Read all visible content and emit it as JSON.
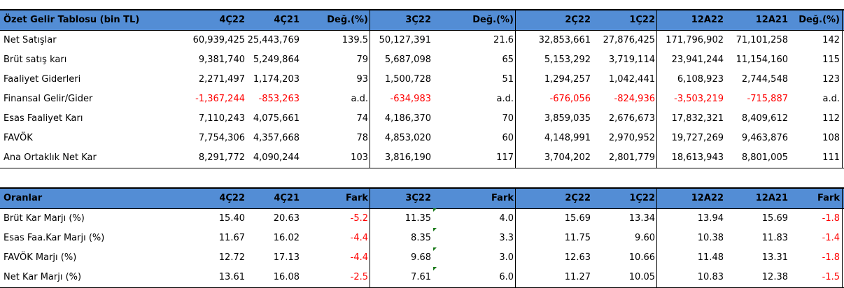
{
  "income": {
    "header": {
      "title": "Özet Gelir Tablosu (bin TL)",
      "cols": [
        "4Ç22",
        "4Ç21",
        "Değ.(%)",
        "3Ç22",
        "Değ.(%)",
        "2Ç22",
        "1Ç22",
        "12A22",
        "12A21",
        "Değ.(%)"
      ]
    },
    "rows": [
      {
        "label": "Net Satışlar",
        "values": [
          "60,939,425",
          "25,443,769",
          "139.5",
          "50,127,391",
          "21.6",
          "32,853,661",
          "27,876,425",
          "171,796,902",
          "71,101,258",
          "142"
        ],
        "negative": []
      },
      {
        "label": "Brüt satış karı",
        "values": [
          "9,381,740",
          "5,249,864",
          "79",
          "5,687,098",
          "65",
          "5,153,292",
          "3,719,114",
          "23,941,244",
          "11,154,160",
          "115"
        ],
        "negative": []
      },
      {
        "label": "Faaliyet Giderleri",
        "values": [
          "2,271,497",
          "1,174,203",
          "93",
          "1,500,728",
          "51",
          "1,294,257",
          "1,042,441",
          "6,108,923",
          "2,744,548",
          "123"
        ],
        "negative": []
      },
      {
        "label": "Finansal Gelir/Gider",
        "values": [
          "-1,367,244",
          "-853,263",
          "a.d.",
          "-634,983",
          "a.d.",
          "-676,056",
          "-824,936",
          "-3,503,219",
          "-715,887",
          "a.d."
        ],
        "negative": [
          0,
          1,
          3,
          5,
          6,
          7,
          8
        ]
      },
      {
        "label": "Esas Faaliyet Karı",
        "values": [
          "7,110,243",
          "4,075,661",
          "74",
          "4,186,370",
          "70",
          "3,859,035",
          "2,676,673",
          "17,832,321",
          "8,409,612",
          "112"
        ],
        "negative": []
      },
      {
        "label": "FAVÖK",
        "values": [
          "7,754,306",
          "4,357,668",
          "78",
          "4,853,020",
          "60",
          "4,148,991",
          "2,970,952",
          "19,727,269",
          "9,463,876",
          "108"
        ],
        "negative": []
      },
      {
        "label": "Ana Ortaklık Net Kar",
        "values": [
          "8,291,772",
          "4,090,244",
          "103",
          "3,816,190",
          "117",
          "3,704,202",
          "2,801,779",
          "18,613,943",
          "8,801,005",
          "111"
        ],
        "negative": []
      }
    ]
  },
  "ratios": {
    "header": {
      "title": "Oranlar",
      "cols": [
        "4Ç22",
        "4Ç21",
        "Fark",
        "3Ç22",
        "Fark",
        "2Ç22",
        "1Ç22",
        "12A22",
        "12A21",
        "Fark"
      ]
    },
    "rows": [
      {
        "label": "Brüt Kar Marjı (%)",
        "values": [
          "15.40",
          "20.63",
          "-5.2",
          "11.35",
          "4.0",
          "15.69",
          "13.34",
          "13.94",
          "15.69",
          "-1.8"
        ],
        "negative": [
          2,
          9
        ]
      },
      {
        "label": "Esas Faa.Kar Marjı (%)",
        "values": [
          "11.67",
          "16.02",
          "-4.4",
          "8.35",
          "3.3",
          "11.75",
          "9.60",
          "10.38",
          "11.83",
          "-1.4"
        ],
        "negative": [
          2,
          9
        ]
      },
      {
        "label": "FAVÖK Marjı (%)",
        "values": [
          "12.72",
          "17.13",
          "-4.4",
          "9.68",
          "3.0",
          "12.63",
          "10.66",
          "11.48",
          "13.31",
          "-1.8"
        ],
        "negative": [
          2,
          9
        ]
      },
      {
        "label": "Net Kar Marjı (%)",
        "values": [
          "13.61",
          "16.08",
          "-2.5",
          "7.61",
          "6.0",
          "11.27",
          "10.05",
          "10.83",
          "12.38",
          "-1.5"
        ],
        "negative": [
          2,
          9
        ]
      }
    ]
  }
}
